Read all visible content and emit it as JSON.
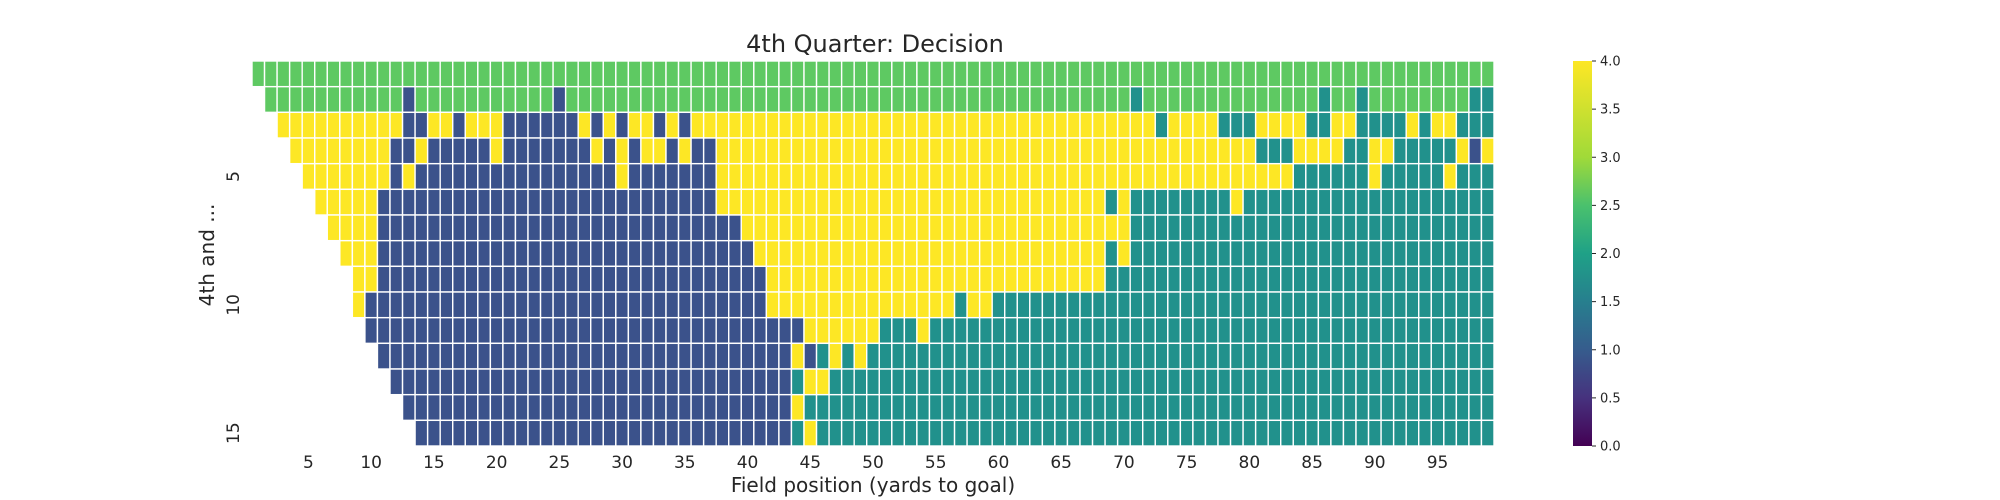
{
  "chart_data": {
    "type": "heatmap",
    "title": "4th Quarter: Decision",
    "xlabel": "Field position (yards to goal)",
    "ylabel": "4th and ...",
    "x_range": [
      1,
      99
    ],
    "y_range": [
      1,
      15
    ],
    "x_ticks": [
      "5",
      "10",
      "15",
      "20",
      "25",
      "30",
      "35",
      "40",
      "45",
      "50",
      "55",
      "60",
      "65",
      "70",
      "75",
      "80",
      "85",
      "90",
      "95"
    ],
    "y_ticks": [
      "5",
      "10",
      "15"
    ],
    "colorbar": {
      "min": 0.0,
      "max": 4.0,
      "ticks": [
        "0.0",
        "0.5",
        "1.0",
        "1.5",
        "2.0",
        "2.5",
        "3.0",
        "3.5",
        "4.0"
      ]
    },
    "colors": {
      "1": "#3b528b",
      "2": "#21918c",
      "3": "#5ec962",
      "4": "#fde725"
    },
    "value_meaning_note_absent": true,
    "rows_start_column": [
      1,
      2,
      3,
      4,
      5,
      6,
      7,
      8,
      9,
      9,
      10,
      11,
      12,
      13,
      14
    ],
    "rows": [
      "333333333333333333333333333333333333333333333333333333333333333333333333333333333333333333333333333",
      "-33333333333133333333333133333333333333333333333333333333333333333333323333333333333323323333333322",
      "--4444444444114414441111114141441414444444444444444444444444444444444444244442224444224422224244222",
      "---444444441141111141111111414144141144444444444444444444444444444444444444444442224444224422222414222",
      "----44444441411111111111111114111111144444444444444444444444444444444444444444444442222224222224222222",
      "-----44444111111111111111111111111111444444444444444444444444444444424222222224222222222222222222222222",
      "------44441111111111111111111111111111144444444444444444444444444444442222222222222222222222222222222",
      "-------44411111111111111111111111111111144444444444444444444444444442422222222222222222222222222222222",
      "--------4411111111111111111111111111111114444444444444444444444444442222222222222222222222222222222222",
      "--------41111111111111111111111111111111144444444444444424422222222222222222222222222222222222222222",
      "---------111111111111111111111111111111111114444442224222222222222222222222222222222222222222222222222",
      "----------111111111111111111111111111111111412424222222222222222222222222222222222222222222222222222",
      "-----------1111111111111111111111111111111124422222222222222222222222222222222222222222222222222222",
      "------------111111111111111111111111111111142222222222222222222222222222222222222222222222222222222",
      "-------------11111111111111111111111111111124222222222222222222222222222222222222222222222222222222"
    ]
  }
}
